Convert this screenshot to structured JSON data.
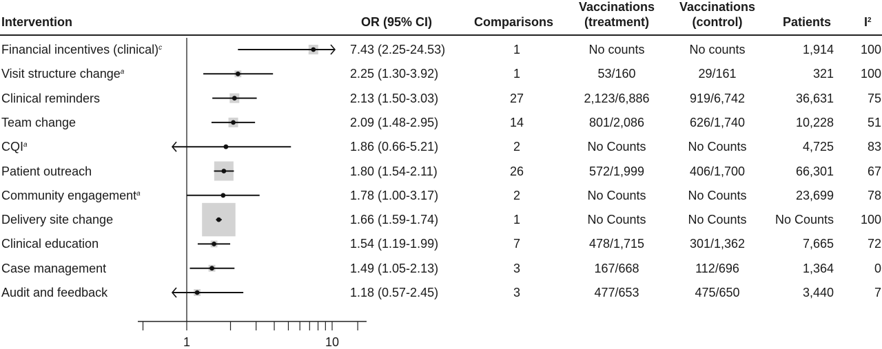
{
  "headers": {
    "intervention": "Intervention",
    "or": "OR (95% CI)",
    "comparisons": "Comparisons",
    "vacc_treatment_1": "Vaccinations",
    "vacc_treatment_2": "(treatment)",
    "vacc_control_1": "Vaccinations",
    "vacc_control_2": "(control)",
    "patients": "Patients",
    "i2": "I",
    "i2_sup": "2"
  },
  "chart_data": {
    "type": "forest",
    "xscale": "log",
    "xlim": [
      0.5,
      15
    ],
    "reference_line": 1,
    "tick_labels": [
      {
        "value": 1,
        "label": "1"
      },
      {
        "value": 10,
        "label": "10"
      }
    ],
    "rows": [
      {
        "name": "Financial incentives (clinical)",
        "sup": "c",
        "or": 7.43,
        "lo": 2.25,
        "hi": 24.53,
        "ci_text": "7.43 (2.25-24.53)",
        "comparisons": "1",
        "treatment": "No counts",
        "control": "No counts",
        "patients": "1,914",
        "i2": "100",
        "weight": 1,
        "arrow_left": false,
        "arrow_right": true
      },
      {
        "name": "Visit structure change",
        "sup": "a",
        "or": 2.25,
        "lo": 1.3,
        "hi": 3.92,
        "ci_text": "2.25 (1.30-3.92)",
        "comparisons": "1",
        "treatment": "53/160",
        "control": "29/161",
        "patients": "321",
        "i2": "100",
        "weight": 0.5,
        "arrow_left": false,
        "arrow_right": false
      },
      {
        "name": "Clinical reminders",
        "sup": "",
        "or": 2.13,
        "lo": 1.5,
        "hi": 3.03,
        "ci_text": "2.13 (1.50-3.03)",
        "comparisons": "27",
        "treatment": "2,123/6,886",
        "control": "919/6,742",
        "patients": "36,631",
        "i2": "75",
        "weight": 1,
        "arrow_left": false,
        "arrow_right": false
      },
      {
        "name": "Team change",
        "sup": "",
        "or": 2.09,
        "lo": 1.48,
        "hi": 2.95,
        "ci_text": "2.09 (1.48-2.95)",
        "comparisons": "14",
        "treatment": "801/2,086",
        "control": "626/1,740",
        "patients": "10,228",
        "i2": "51",
        "weight": 1,
        "arrow_left": false,
        "arrow_right": false
      },
      {
        "name": "CQI",
        "sup": "a",
        "or": 1.86,
        "lo": 0.66,
        "hi": 5.21,
        "ci_text": "1.86 (0.66-5.21)",
        "comparisons": "2",
        "treatment": "No Counts",
        "control": "No Counts",
        "patients": "4,725",
        "i2": "83",
        "weight": 0,
        "arrow_left": true,
        "arrow_right": false
      },
      {
        "name": "Patient outreach",
        "sup": "",
        "or": 1.8,
        "lo": 1.54,
        "hi": 2.11,
        "ci_text": "1.80 (1.54-2.11)",
        "comparisons": "26",
        "treatment": "572/1,999",
        "control": "406/1,700",
        "patients": "66,301",
        "i2": "67",
        "weight": 4,
        "arrow_left": false,
        "arrow_right": false
      },
      {
        "name": "Community engagement",
        "sup": "a",
        "or": 1.78,
        "lo": 1.0,
        "hi": 3.17,
        "ci_text": "1.78 (1.00-3.17)",
        "comparisons": "2",
        "treatment": "No Counts",
        "control": "No Counts",
        "patients": "23,699",
        "i2": "78",
        "weight": 0,
        "arrow_left": false,
        "arrow_right": false
      },
      {
        "name": "Delivery site change",
        "sup": "",
        "or": 1.66,
        "lo": 1.59,
        "hi": 1.74,
        "ci_text": "1.66 (1.59-1.74)",
        "comparisons": "1",
        "treatment": "No Counts",
        "control": "No Counts",
        "patients": "No Counts",
        "i2": "100",
        "weight": 12,
        "arrow_left": false,
        "arrow_right": false
      },
      {
        "name": "Clinical education",
        "sup": "",
        "or": 1.54,
        "lo": 1.19,
        "hi": 1.99,
        "ci_text": "1.54 (1.19-1.99)",
        "comparisons": "7",
        "treatment": "478/1,715",
        "control": "301/1,362",
        "patients": "7,665",
        "i2": "72",
        "weight": 0.5,
        "arrow_left": false,
        "arrow_right": false
      },
      {
        "name": "Case management",
        "sup": "",
        "or": 1.49,
        "lo": 1.05,
        "hi": 2.13,
        "ci_text": "1.49 (1.05-2.13)",
        "comparisons": "3",
        "treatment": "167/668",
        "control": "112/696",
        "patients": "1,364",
        "i2": "0",
        "weight": 0.5,
        "arrow_left": false,
        "arrow_right": false
      },
      {
        "name": "Audit and feedback",
        "sup": "",
        "or": 1.18,
        "lo": 0.57,
        "hi": 2.45,
        "ci_text": "1.18 (0.57-2.45)",
        "comparisons": "3",
        "treatment": "477/653",
        "control": "475/650",
        "patients": "3,440",
        "i2": "7",
        "weight": 0.5,
        "arrow_left": true,
        "arrow_right": false
      }
    ]
  }
}
